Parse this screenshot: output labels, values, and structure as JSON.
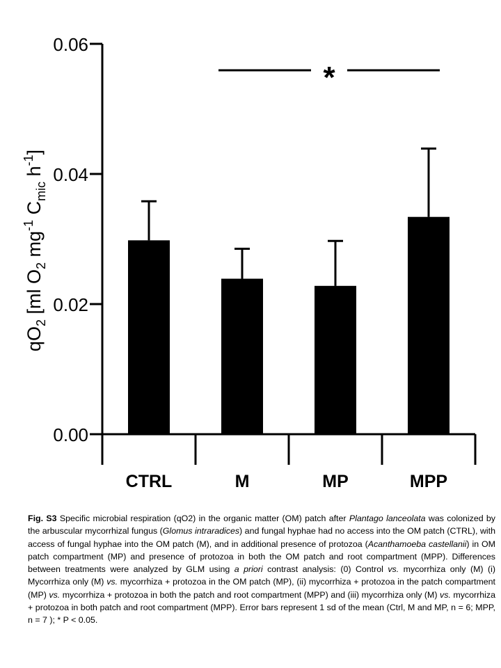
{
  "chart_data": {
    "type": "bar",
    "categories": [
      "CTRL",
      "M",
      "MP",
      "MPP"
    ],
    "values": [
      0.0298,
      0.0239,
      0.0228,
      0.0334
    ],
    "errors": [
      0.006,
      0.0046,
      0.0069,
      0.0105
    ],
    "ylabel_parts": [
      "qO",
      "2",
      " [ml O",
      "2",
      " mg",
      "-1",
      " C",
      "mic",
      " h",
      "-1",
      "]"
    ],
    "yticks": [
      "0.00",
      "0.02",
      "0.04",
      "0.06"
    ],
    "ylim": [
      0,
      0.06
    ],
    "significance": {
      "label": "*",
      "from": "M",
      "to": "MPP"
    },
    "bar_color": "#000000"
  },
  "caption": {
    "lead": "Fig. S3",
    "segments": [
      {
        "t": " Specific microbial respiration (qO2) in the organic matter (OM) patch after "
      },
      {
        "t": "Plantago lanceolata",
        "i": true
      },
      {
        "t": " was colonized by the arbuscular mycorrhizal fungus ("
      },
      {
        "t": "Glomus intraradices",
        "i": true
      },
      {
        "t": ") and fungal hyphae had no access into the OM patch (CTRL), with access of fungal hyphae into the OM patch (M), and in additional presence of protozoa ("
      },
      {
        "t": "Acanthamoeba castellanii",
        "i": true
      },
      {
        "t": ") in OM patch compartment (MP) and presence of protozoa in both the OM patch and root compartment (MPP). Differences between treatments were analyzed by GLM using "
      },
      {
        "t": "a priori",
        "i": true
      },
      {
        "t": " contrast analysis: (0) Control "
      },
      {
        "t": "vs.",
        "i": true
      },
      {
        "t": " mycorrhiza only (M) (i) Mycorrhiza only (M) "
      },
      {
        "t": "vs.",
        "i": true
      },
      {
        "t": " mycorrhiza + protozoa in the OM patch (MP), (ii) mycorrhiza + protozoa in the patch compartment (MP) "
      },
      {
        "t": "vs.",
        "i": true
      },
      {
        "t": " mycorrhiza + protozoa in both the patch and root compartment (MPP) and (iii) mycorrhiza only (M) "
      },
      {
        "t": "vs.",
        "i": true
      },
      {
        "t": " mycorrhiza + protozoa in both patch and root compartment (MPP). Error bars represent 1 sd of the mean (Ctrl, M and MP, n = 6; MPP, n = 7 ); * P < 0.05."
      }
    ]
  }
}
